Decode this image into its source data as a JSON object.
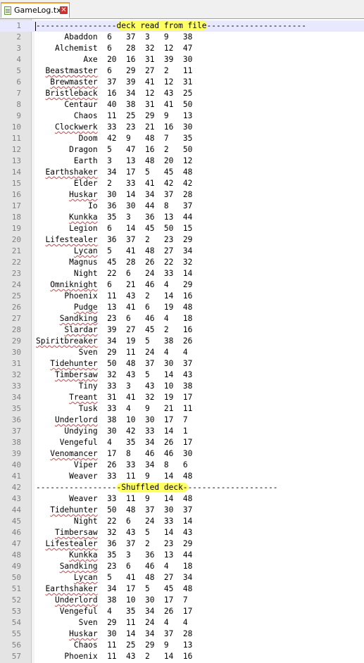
{
  "tab": {
    "filename": "GameLog.txt",
    "close_glyph": "✕"
  },
  "header_line": {
    "prefix": "-----------------",
    "highlight": "deck read from file",
    "suffix": "---------------------"
  },
  "shuffled_line": {
    "prefix": "-----------------",
    "highlight": "-Shuffled deck-",
    "suffix": "-------------------"
  },
  "deck": [
    [
      "Abaddon",
      6,
      37,
      3,
      9,
      38
    ],
    [
      "Alchemist",
      6,
      28,
      32,
      12,
      47
    ],
    [
      "Axe",
      20,
      16,
      31,
      39,
      30
    ],
    [
      "Beastmaster",
      6,
      29,
      27,
      2,
      11
    ],
    [
      "Brewmaster",
      37,
      39,
      41,
      12,
      31
    ],
    [
      "Bristleback",
      16,
      34,
      12,
      43,
      25
    ],
    [
      "Centaur",
      40,
      38,
      31,
      41,
      50
    ],
    [
      "Chaos",
      11,
      25,
      29,
      9,
      13
    ],
    [
      "Clockwerk",
      33,
      23,
      21,
      16,
      30
    ],
    [
      "Doom",
      42,
      9,
      48,
      7,
      35
    ],
    [
      "Dragon",
      5,
      47,
      16,
      2,
      50
    ],
    [
      "Earth",
      3,
      13,
      48,
      20,
      12
    ],
    [
      "Earthshaker",
      34,
      17,
      5,
      45,
      48
    ],
    [
      "Elder",
      2,
      33,
      41,
      42,
      42
    ],
    [
      "Huskar",
      30,
      14,
      34,
      37,
      28
    ],
    [
      "Io",
      36,
      30,
      44,
      8,
      37
    ],
    [
      "Kunkka",
      35,
      3,
      36,
      13,
      44
    ],
    [
      "Legion",
      6,
      14,
      45,
      50,
      15
    ],
    [
      "Lifestealer",
      36,
      37,
      2,
      23,
      29
    ],
    [
      "Lycan",
      5,
      41,
      48,
      27,
      34
    ],
    [
      "Magnus",
      45,
      28,
      26,
      22,
      32
    ],
    [
      "Night",
      22,
      6,
      24,
      33,
      14
    ],
    [
      "Omniknight",
      6,
      21,
      46,
      4,
      29
    ],
    [
      "Phoenix",
      11,
      43,
      2,
      14,
      16
    ],
    [
      "Pudge",
      13,
      41,
      6,
      19,
      48
    ],
    [
      "Sandking",
      23,
      6,
      46,
      4,
      18
    ],
    [
      "Slardar",
      39,
      27,
      45,
      2,
      16
    ],
    [
      "Spiritbreaker",
      34,
      19,
      5,
      38,
      26
    ],
    [
      "Sven",
      29,
      11,
      24,
      4,
      4
    ],
    [
      "Tidehunter",
      50,
      48,
      37,
      30,
      37
    ],
    [
      "Timbersaw",
      32,
      43,
      5,
      14,
      43
    ],
    [
      "Tiny",
      33,
      3,
      43,
      10,
      38
    ],
    [
      "Treant",
      31,
      41,
      32,
      19,
      17
    ],
    [
      "Tusk",
      33,
      4,
      9,
      21,
      11
    ],
    [
      "Underlord",
      38,
      10,
      30,
      17,
      7
    ],
    [
      "Undying",
      30,
      42,
      33,
      14,
      1
    ],
    [
      "Vengeful",
      4,
      35,
      34,
      26,
      17
    ],
    [
      "Venomancer",
      17,
      8,
      46,
      46,
      30
    ],
    [
      "Viper",
      26,
      33,
      34,
      8,
      6
    ],
    [
      "Weaver",
      33,
      11,
      9,
      14,
      48
    ]
  ],
  "shuffled": [
    [
      "Weaver",
      33,
      11,
      9,
      14,
      48
    ],
    [
      "Tidehunter",
      50,
      48,
      37,
      30,
      37
    ],
    [
      "Night",
      22,
      6,
      24,
      33,
      14
    ],
    [
      "Timbersaw",
      32,
      43,
      5,
      14,
      43
    ],
    [
      "Lifestealer",
      36,
      37,
      2,
      23,
      29
    ],
    [
      "Kunkka",
      35,
      3,
      36,
      13,
      44
    ],
    [
      "Sandking",
      23,
      6,
      46,
      4,
      18
    ],
    [
      "Lycan",
      5,
      41,
      48,
      27,
      34
    ],
    [
      "Earthshaker",
      34,
      17,
      5,
      45,
      48
    ],
    [
      "Underlord",
      38,
      10,
      30,
      17,
      7
    ],
    [
      "Vengeful",
      4,
      35,
      34,
      26,
      17
    ],
    [
      "Sven",
      29,
      11,
      24,
      4,
      4
    ],
    [
      "Huskar",
      30,
      14,
      34,
      37,
      28
    ],
    [
      "Chaos",
      11,
      25,
      29,
      9,
      13
    ],
    [
      "Phoenix",
      11,
      43,
      2,
      14,
      16
    ]
  ],
  "spellcheck_flagged": [
    "Beastmaster",
    "Brewmaster",
    "Bristleback",
    "Clockwerk",
    "Earthshaker",
    "Huskar",
    "Kunkka",
    "Lifestealer",
    "Lycan",
    "Omniknight",
    "Pudge",
    "Sandking",
    "Slardar",
    "Spiritbreaker",
    "Tidehunter",
    "Timbersaw",
    "Treant",
    "Underlord",
    "Venomancer"
  ]
}
